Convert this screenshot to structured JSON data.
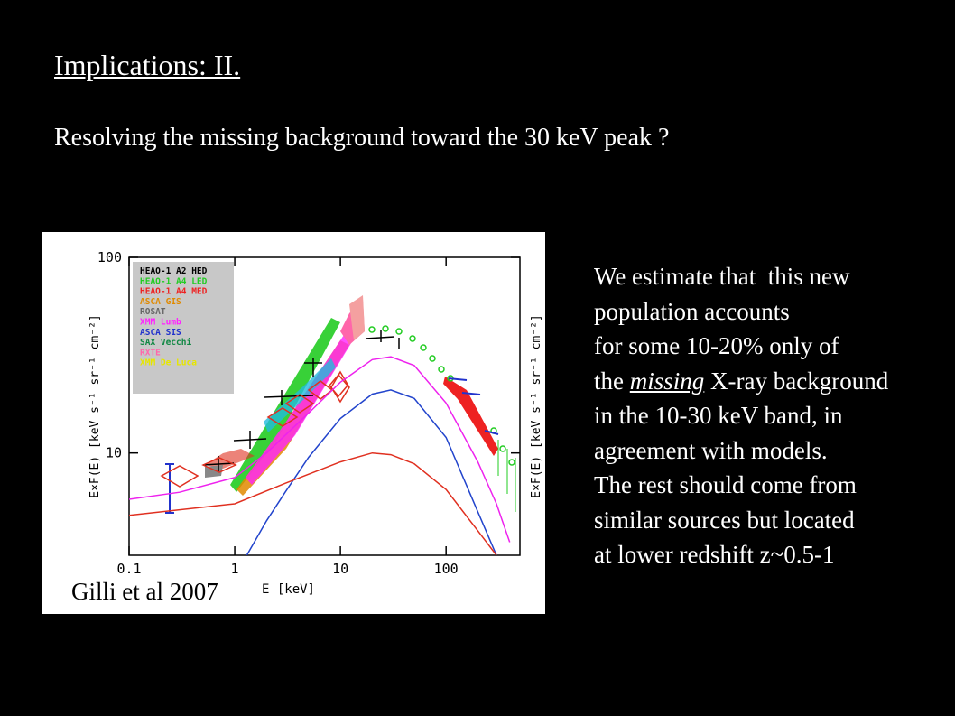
{
  "slide": {
    "title": "Implications: II.",
    "subtitle": "Resolving the missing background toward the 30 keV peak ?",
    "text_lines": [
      "We estimate that  this new",
      "population accounts",
      "for some 10-20% only of",
      [
        "the ",
        "missing",
        " X-ray background"
      ],
      "in the 10-30 keV band, in",
      "agreement with models.",
      "The rest should come from",
      "similar sources but located",
      "at lower redshift z~0.5-1"
    ],
    "caption": "Gilli et al 2007"
  },
  "chart_data": {
    "type": "line",
    "xlabel": "E [keV]",
    "ylabel": "E×F(E) [keV s⁻¹ sr⁻¹ cm⁻²]",
    "log_x": true,
    "log_y": true,
    "xlim": [
      0.1,
      500
    ],
    "ylim": [
      3,
      100
    ],
    "xticks": [
      0.1,
      1,
      10,
      100
    ],
    "yticks": [
      10,
      100
    ],
    "legend": [
      {
        "name": "HEAO-1 A2 HED",
        "color": "#000000"
      },
      {
        "name": "HEAO-1 A4 LED",
        "color": "#22cc22"
      },
      {
        "name": "HEAO-1 A4 MED",
        "color": "#ee2222"
      },
      {
        "name": "ASCA GIS",
        "color": "#e08a00"
      },
      {
        "name": "ROSAT",
        "color": "#666666"
      },
      {
        "name": "XMM Lumb",
        "color": "#ff22ff"
      },
      {
        "name": "ASCA SIS",
        "color": "#2233cc"
      },
      {
        "name": "SAX Vecchi",
        "color": "#118844"
      },
      {
        "name": "RXTE",
        "color": "#ff66aa"
      },
      {
        "name": "XMM De Luca",
        "color": "#e6e600"
      }
    ],
    "series": [
      {
        "color": "#ee22ee",
        "x": [
          0.1,
          0.3,
          1,
          2,
          5,
          10,
          20,
          30,
          50,
          100,
          200,
          300,
          400
        ],
        "values": [
          5.8,
          6.3,
          7.5,
          10,
          16,
          23,
          30,
          31,
          28,
          18,
          9,
          5.5,
          3.5
        ]
      },
      {
        "color": "#2244cc",
        "x": [
          1.3,
          2,
          3,
          5,
          10,
          20,
          30,
          50,
          100,
          200,
          300
        ],
        "values": [
          3,
          4.5,
          6.3,
          9.5,
          15,
          20,
          21,
          19,
          12,
          5,
          3
        ]
      },
      {
        "color": "#e03020",
        "x": [
          0.1,
          1,
          3,
          10,
          20,
          30,
          50,
          100,
          200,
          300
        ],
        "values": [
          4.8,
          5.5,
          7,
          9,
          10,
          9.8,
          8.8,
          6.5,
          4,
          3
        ]
      }
    ]
  }
}
